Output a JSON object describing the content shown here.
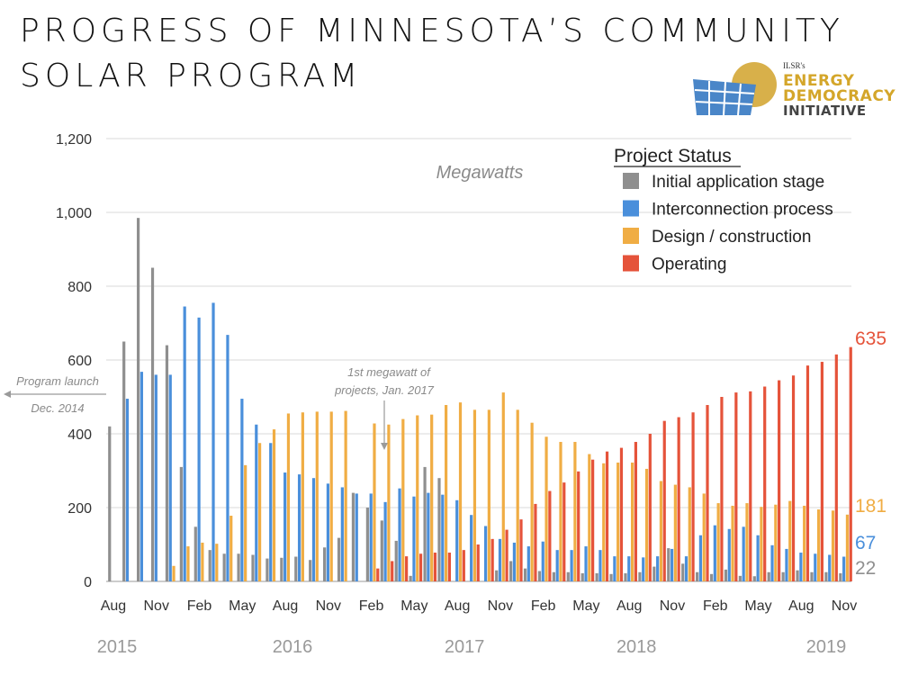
{
  "title": {
    "line1": "PROGRESS OF MINNESOTA’S COMMUNITY",
    "line2": "SOLAR PROGRAM"
  },
  "logo": {
    "small_text": "ILSR's",
    "line1": "ENERGY",
    "line2": "DEMOCRACY",
    "line3": "INITIATIVE"
  },
  "chart_data": {
    "type": "bar",
    "units_label": "Megawatts",
    "ylim": [
      0,
      1200
    ],
    "yticks": [
      "0",
      "200",
      "400",
      "600",
      "800",
      "1,000",
      "1,200"
    ],
    "x_tick_labels": [
      "Aug",
      "Nov",
      "Feb",
      "May",
      "Aug",
      "Nov",
      "Feb",
      "May",
      "Aug",
      "Nov",
      "Feb",
      "May",
      "Aug",
      "Nov",
      "Feb",
      "May",
      "Aug",
      "Nov"
    ],
    "year_labels": [
      "2015",
      "2016",
      "2017",
      "2018",
      "2019"
    ],
    "legend_title": "Project Status",
    "legend_placement": "top-right",
    "grid": true,
    "series": [
      {
        "name": "Initial application stage",
        "color": "#8f8f8f",
        "values": [
          420,
          650,
          985,
          850,
          640,
          310,
          148,
          85,
          75,
          75,
          72,
          62,
          64,
          67,
          58,
          92,
          118,
          240,
          200,
          165,
          110,
          15,
          310,
          280,
          0,
          0,
          0,
          30,
          55,
          35,
          28,
          25,
          25,
          22,
          22,
          20,
          22,
          25,
          40,
          90,
          48,
          25,
          20,
          32,
          15,
          14,
          25,
          25,
          30,
          25,
          25,
          22
        ]
      },
      {
        "name": "Interconnection process",
        "color": "#4a8fdb",
        "values": [
          0,
          495,
          568,
          560,
          560,
          745,
          715,
          755,
          668,
          495,
          425,
          375,
          295,
          290,
          280,
          265,
          255,
          238,
          238,
          215,
          252,
          230,
          240,
          235,
          220,
          180,
          150,
          115,
          105,
          95,
          108,
          85,
          85,
          95,
          85,
          68,
          68,
          65,
          68,
          88,
          68,
          125,
          152,
          142,
          148,
          125,
          98,
          88,
          78,
          75,
          72,
          67
        ]
      },
      {
        "name": "Design / construction",
        "color": "#f0ad44",
        "values": [
          0,
          0,
          0,
          0,
          42,
          95,
          105,
          102,
          178,
          315,
          375,
          412,
          455,
          458,
          460,
          460,
          462,
          0,
          428,
          425,
          440,
          450,
          452,
          478,
          485,
          465,
          465,
          512,
          465,
          430,
          392,
          378,
          378,
          345,
          320,
          322,
          322,
          305,
          272,
          262,
          255,
          238,
          212,
          205,
          212,
          202,
          208,
          218,
          205,
          195,
          192,
          181
        ]
      },
      {
        "name": "Operating",
        "color": "#e5533a",
        "values": [
          0,
          0,
          0,
          0,
          0,
          0,
          0,
          0,
          0,
          0,
          0,
          0,
          0,
          0,
          0,
          0,
          0,
          0,
          35,
          55,
          68,
          75,
          78,
          78,
          85,
          100,
          115,
          140,
          168,
          210,
          245,
          268,
          298,
          330,
          352,
          362,
          378,
          400,
          435,
          445,
          458,
          478,
          500,
          512,
          515,
          528,
          545,
          558,
          585,
          595,
          615,
          635
        ]
      }
    ],
    "end_labels": [
      {
        "value": "635",
        "color": "#e5533a"
      },
      {
        "value": "181",
        "color": "#f0ad44"
      },
      {
        "value": "67",
        "color": "#4a8fdb"
      },
      {
        "value": "22",
        "color": "#8f8f8f"
      }
    ],
    "annotations": {
      "launch_line1": "Program launch",
      "launch_line2": "Dec. 2014",
      "megawatt_line1": "1st megawatt of",
      "megawatt_line2": "projects, Jan. 2017"
    }
  }
}
